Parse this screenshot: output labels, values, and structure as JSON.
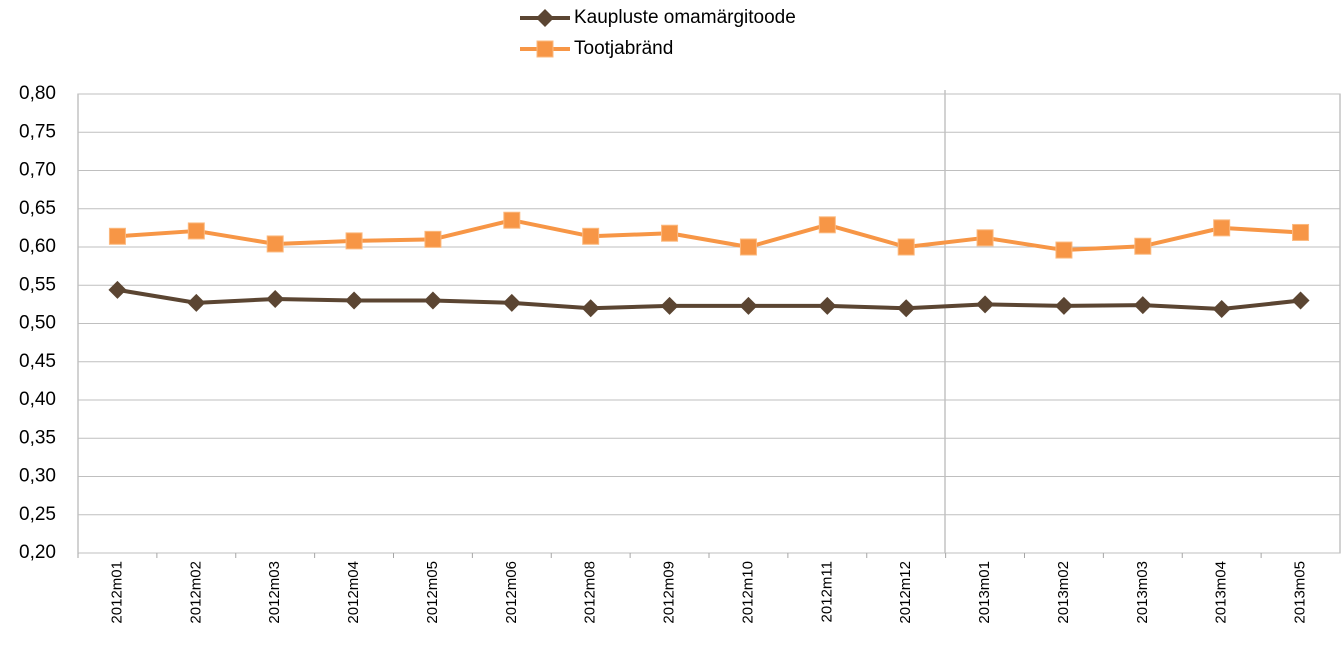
{
  "chart_data": {
    "type": "line",
    "categories": [
      "2012m01",
      "2012m02",
      "2012m03",
      "2012m04",
      "2012m05",
      "2012m06",
      "2012m08",
      "2012m09",
      "2012m10",
      "2012m11",
      "2012m12",
      "2013m01",
      "2013m02",
      "2013m03",
      "2013m04",
      "2013m05"
    ],
    "series": [
      {
        "name": "Kaupluste omamärgitoode",
        "color": "#5b4532",
        "marker": "diamond",
        "values": [
          0.544,
          0.527,
          0.532,
          0.53,
          0.53,
          0.527,
          0.52,
          0.523,
          0.523,
          0.523,
          0.52,
          0.525,
          0.523,
          0.524,
          0.519,
          0.53
        ]
      },
      {
        "name": "Tootjabränd",
        "color": "#f79646",
        "marker": "square",
        "values": [
          0.614,
          0.621,
          0.604,
          0.608,
          0.61,
          0.635,
          0.614,
          0.618,
          0.6,
          0.629,
          0.6,
          0.612,
          0.596,
          0.601,
          0.625,
          0.619
        ]
      }
    ],
    "ylim": [
      0.2,
      0.8
    ],
    "yticks": [
      {
        "value": 0.2,
        "label": "0,20"
      },
      {
        "value": 0.25,
        "label": "0,25"
      },
      {
        "value": 0.3,
        "label": "0,30"
      },
      {
        "value": 0.35,
        "label": "0,35"
      },
      {
        "value": 0.4,
        "label": "0,40"
      },
      {
        "value": 0.45,
        "label": "0,45"
      },
      {
        "value": 0.5,
        "label": "0,50"
      },
      {
        "value": 0.55,
        "label": "0,55"
      },
      {
        "value": 0.6,
        "label": "0,60"
      },
      {
        "value": 0.65,
        "label": "0,65"
      },
      {
        "value": 0.7,
        "label": "0,70"
      },
      {
        "value": 0.75,
        "label": "0,75"
      },
      {
        "value": 0.8,
        "label": "0,80"
      }
    ],
    "grid": true,
    "legend": "top"
  }
}
